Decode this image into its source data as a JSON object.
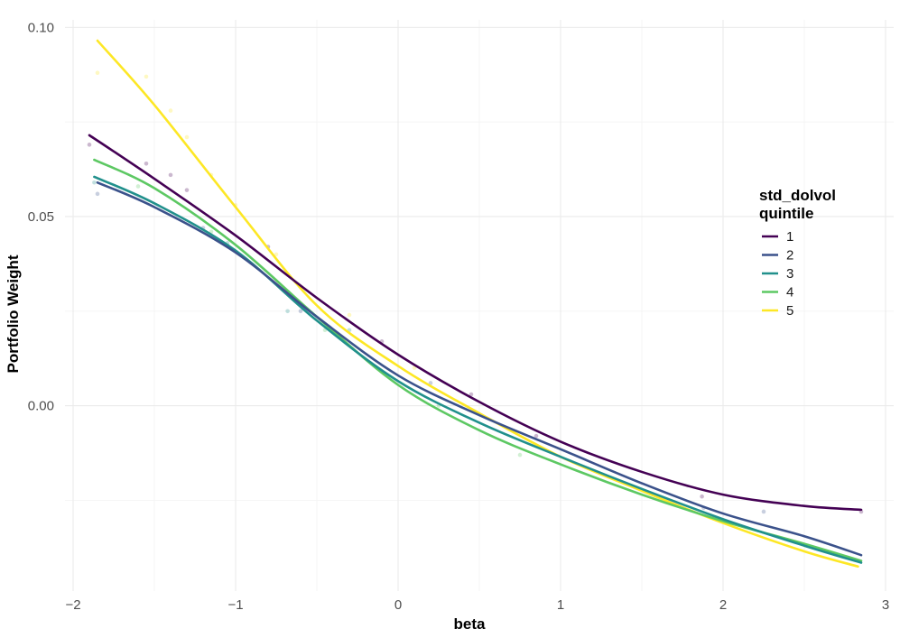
{
  "chart_data": {
    "type": "line",
    "title": "",
    "xlabel": "beta",
    "ylabel": "Portfolio Weight",
    "xlim": [
      -2.05,
      3.05
    ],
    "ylim": [
      -0.049,
      0.102
    ],
    "x_ticks": [
      -2,
      -1,
      0,
      1,
      2,
      3
    ],
    "x_tick_labels": [
      "−2",
      "−1",
      "0",
      "1",
      "2",
      "3"
    ],
    "y_ticks": [
      0.0,
      0.05,
      0.1
    ],
    "y_tick_labels": [
      "0.00",
      "0.05",
      "0.10"
    ],
    "grid": true,
    "legend": {
      "title_line1": "std_dolvol",
      "title_line2": "quintile",
      "placement": "right"
    },
    "series": [
      {
        "name": "1",
        "color": "#440154",
        "x": [
          -1.9,
          -1.5,
          -1.0,
          -0.5,
          0.0,
          0.5,
          1.0,
          1.5,
          2.0,
          2.5,
          2.85
        ],
        "values": [
          0.0715,
          0.06,
          0.045,
          0.0285,
          0.0135,
          0.001,
          -0.0095,
          -0.0175,
          -0.0235,
          -0.0265,
          -0.0275
        ]
      },
      {
        "name": "2",
        "color": "#3B528B",
        "x": [
          -1.85,
          -1.5,
          -1.0,
          -0.5,
          0.0,
          0.5,
          1.0,
          1.5,
          2.0,
          2.5,
          2.85
        ],
        "values": [
          0.059,
          0.0525,
          0.0405,
          0.0235,
          0.008,
          -0.0025,
          -0.0115,
          -0.0205,
          -0.0285,
          -0.0345,
          -0.0395
        ]
      },
      {
        "name": "3",
        "color": "#21908C",
        "x": [
          -1.87,
          -1.5,
          -1.0,
          -0.5,
          0.0,
          0.5,
          1.0,
          1.5,
          2.0,
          2.5,
          2.85
        ],
        "values": [
          0.0605,
          0.0535,
          0.041,
          0.0225,
          0.0065,
          -0.0045,
          -0.0135,
          -0.022,
          -0.03,
          -0.037,
          -0.0415
        ]
      },
      {
        "name": "4",
        "color": "#5DC863",
        "x": [
          -1.87,
          -1.5,
          -1.0,
          -0.5,
          0.0,
          0.5,
          1.0,
          1.5,
          2.0,
          2.5,
          2.85
        ],
        "values": [
          0.065,
          0.0575,
          0.0425,
          0.0235,
          0.0055,
          -0.0065,
          -0.0155,
          -0.0235,
          -0.0305,
          -0.0365,
          -0.041
        ]
      },
      {
        "name": "5",
        "color": "#FDE725",
        "x": [
          -1.85,
          -1.5,
          -1.0,
          -0.5,
          0.0,
          0.5,
          1.0,
          1.5,
          2.0,
          2.5,
          2.83
        ],
        "values": [
          0.0965,
          0.0795,
          0.0525,
          0.0265,
          0.0105,
          -0.002,
          -0.0135,
          -0.0225,
          -0.031,
          -0.0385,
          -0.0425
        ]
      }
    ],
    "points": [
      {
        "series": "1",
        "x": -1.9,
        "y": 0.069
      },
      {
        "series": "1",
        "x": -1.55,
        "y": 0.064
      },
      {
        "series": "1",
        "x": -1.4,
        "y": 0.061
      },
      {
        "series": "1",
        "x": -1.3,
        "y": 0.057
      },
      {
        "series": "1",
        "x": -0.8,
        "y": 0.042
      },
      {
        "series": "1",
        "x": -0.1,
        "y": 0.017
      },
      {
        "series": "1",
        "x": 0.45,
        "y": 0.003
      },
      {
        "series": "1",
        "x": 0.85,
        "y": -0.008
      },
      {
        "series": "1",
        "x": 1.87,
        "y": -0.024
      },
      {
        "series": "1",
        "x": 2.85,
        "y": -0.028
      },
      {
        "series": "2",
        "x": -1.85,
        "y": 0.056
      },
      {
        "series": "2",
        "x": -1.2,
        "y": 0.047
      },
      {
        "series": "2",
        "x": -0.6,
        "y": 0.025
      },
      {
        "series": "2",
        "x": 0.2,
        "y": 0.006
      },
      {
        "series": "2",
        "x": 1.88,
        "y": -0.027
      },
      {
        "series": "2",
        "x": 2.25,
        "y": -0.028
      },
      {
        "series": "3",
        "x": -1.87,
        "y": 0.059
      },
      {
        "series": "3",
        "x": -1.05,
        "y": 0.043
      },
      {
        "series": "3",
        "x": -0.68,
        "y": 0.025
      },
      {
        "series": "3",
        "x": -0.3,
        "y": 0.02
      },
      {
        "series": "4",
        "x": -1.6,
        "y": 0.058
      },
      {
        "series": "4",
        "x": -1.15,
        "y": 0.046
      },
      {
        "series": "4",
        "x": -0.45,
        "y": 0.02
      },
      {
        "series": "4",
        "x": 0.25,
        "y": 0.0
      },
      {
        "series": "4",
        "x": 0.75,
        "y": -0.013
      },
      {
        "series": "5",
        "x": -1.85,
        "y": 0.088
      },
      {
        "series": "5",
        "x": -1.55,
        "y": 0.087
      },
      {
        "series": "5",
        "x": -1.4,
        "y": 0.078
      },
      {
        "series": "5",
        "x": -1.3,
        "y": 0.071
      },
      {
        "series": "5",
        "x": -1.15,
        "y": 0.061
      },
      {
        "series": "5",
        "x": -1.0,
        "y": 0.053
      },
      {
        "series": "5",
        "x": -0.75,
        "y": 0.04
      },
      {
        "series": "5",
        "x": -0.3,
        "y": 0.024
      },
      {
        "series": "5",
        "x": 0.1,
        "y": 0.01
      }
    ]
  }
}
